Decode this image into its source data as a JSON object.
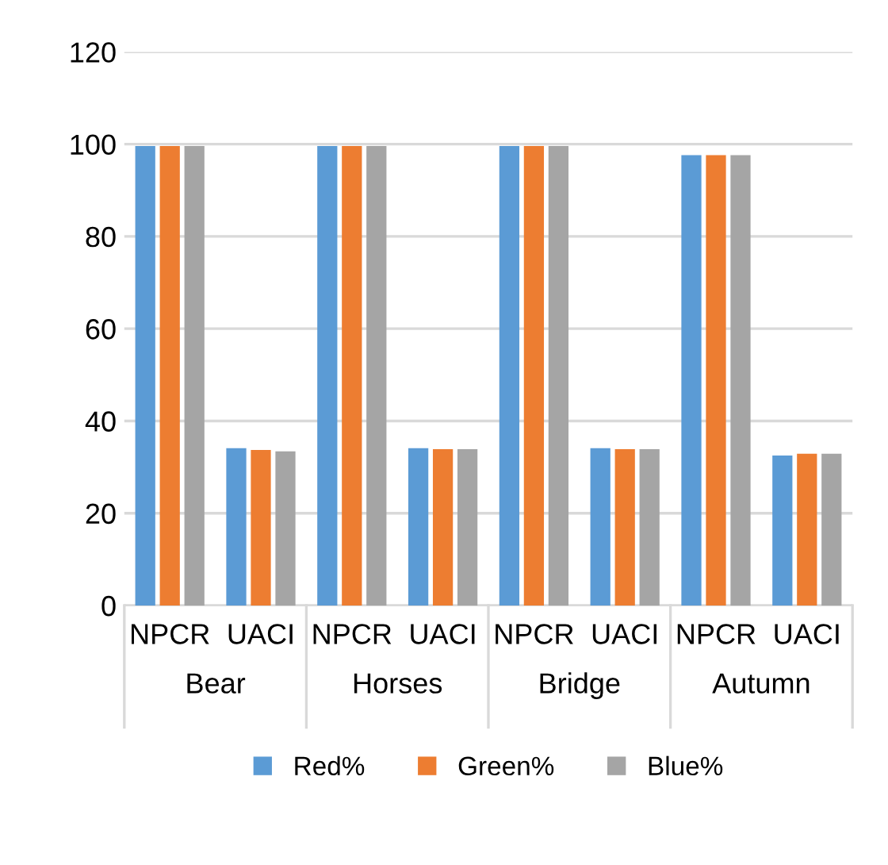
{
  "chart_data": {
    "type": "bar",
    "categories": [
      "NPCR",
      "UACI",
      "NPCR",
      "UACI",
      "NPCR",
      "UACI",
      "NPCR",
      "UACI"
    ],
    "annotations": [
      "Bear",
      "Horses",
      "Bridge",
      "Autumn"
    ],
    "series": [
      {
        "name": "Red%",
        "color": "#5b9bd5",
        "values": [
          99.6,
          34.1,
          99.6,
          34.1,
          99.6,
          34.1,
          97.6,
          32.5
        ]
      },
      {
        "name": "Green%",
        "color": "#ed7d31",
        "values": [
          99.6,
          33.7,
          99.6,
          33.9,
          99.6,
          33.9,
          97.6,
          32.9
        ]
      },
      {
        "name": "Blue%",
        "color": "#a5a5a5",
        "values": [
          99.6,
          33.4,
          99.6,
          33.9,
          99.6,
          33.9,
          97.6,
          32.9
        ]
      }
    ],
    "ylim": [
      0,
      120
    ],
    "yticks": [
      0,
      20,
      40,
      60,
      80,
      100,
      120
    ],
    "grid": "y",
    "legend": "bottom"
  }
}
